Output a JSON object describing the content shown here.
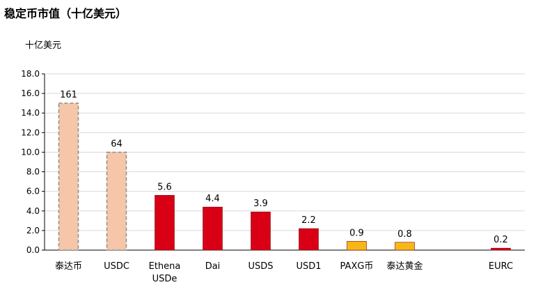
{
  "chart_data": {
    "type": "bar",
    "title": "稳定币市值（十亿美元）",
    "ylabel": "十亿美元",
    "ylim": [
      0,
      18
    ],
    "yticks": [
      "0.0",
      "2.0",
      "4.0",
      "6.0",
      "8.0",
      "10.0",
      "12.0",
      "14.0",
      "16.0",
      "18.0"
    ],
    "grid": true,
    "axis_break_note": "bars 泰达币 and USDC drawn truncated (dashed outline)",
    "categories": [
      "泰达币",
      "USDC",
      "Ethena USDe",
      "Dai",
      "USDS",
      "USD1",
      "PAXG币",
      "泰达黄金",
      "",
      "EURC"
    ],
    "category_lines": [
      [
        "泰达币"
      ],
      [
        "USDC"
      ],
      [
        "Ethena",
        "USDe"
      ],
      [
        "Dai"
      ],
      [
        "USDS"
      ],
      [
        "USD1"
      ],
      [
        "PAXG币"
      ],
      [
        "泰达黄金"
      ],
      [
        ""
      ],
      [
        "EURC"
      ]
    ],
    "values": [
      161,
      64,
      5.6,
      4.4,
      3.9,
      2.2,
      0.9,
      0.8,
      null,
      0.2
    ],
    "display_values": [
      15,
      10,
      5.6,
      4.4,
      3.9,
      2.2,
      0.9,
      0.8,
      null,
      0.2
    ],
    "data_labels": [
      "161",
      "64",
      "5.6",
      "4.4",
      "3.9",
      "2.2",
      "0.9",
      "0.8",
      "",
      "0.2"
    ],
    "truncated": [
      true,
      true,
      false,
      false,
      false,
      false,
      false,
      false,
      false,
      false
    ],
    "bar_colors": [
      "#f5c6a8",
      "#f5c6a8",
      "#d90016",
      "#d90016",
      "#d90016",
      "#d90016",
      "#f7b718",
      "#f7b718",
      "#ffffff",
      "#d90016"
    ],
    "grid_color": "#d9d9d9"
  }
}
